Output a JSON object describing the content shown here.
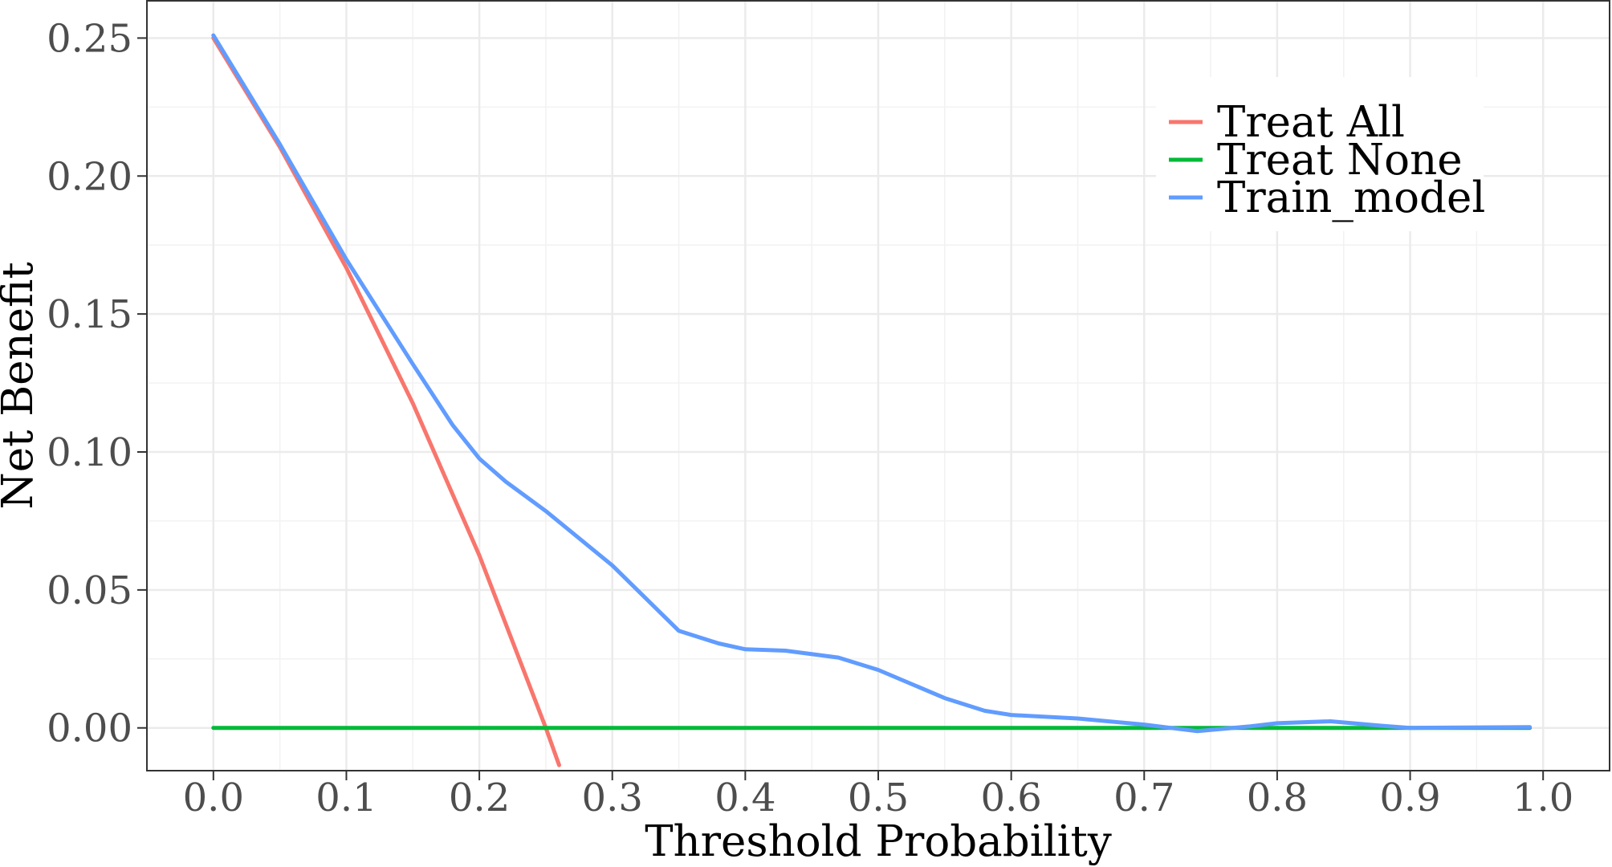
{
  "chart_data": {
    "type": "line",
    "title": "",
    "xlabel": "Threshold Probability",
    "ylabel": "Net Benefit",
    "xlim": [
      -0.05,
      1.05
    ],
    "ylim": [
      -0.0155,
      0.2635
    ],
    "x_ticks": [
      0.0,
      0.1,
      0.2,
      0.3,
      0.4,
      0.5,
      0.6,
      0.7,
      0.8,
      0.9,
      1.0
    ],
    "x_tick_labels": [
      "0.0",
      "0.1",
      "0.2",
      "0.3",
      "0.4",
      "0.5",
      "0.6",
      "0.7",
      "0.8",
      "0.9",
      "1.0"
    ],
    "y_ticks": [
      0.0,
      0.05,
      0.1,
      0.15,
      0.2,
      0.25
    ],
    "y_tick_labels": [
      "0.00",
      "0.05",
      "0.10",
      "0.15",
      "0.20",
      "0.25"
    ],
    "grid": true,
    "legend_position": "top-right",
    "series": [
      {
        "name": "Treat All",
        "color": "#F8766D",
        "x": [
          0.0,
          0.05,
          0.1,
          0.15,
          0.2,
          0.25,
          0.26
        ],
        "y": [
          0.25,
          0.2105,
          0.1667,
          0.1176,
          0.0625,
          0.0,
          -0.0135
        ]
      },
      {
        "name": "Treat None",
        "color": "#00BA38",
        "x": [
          0.0,
          0.99
        ],
        "y": [
          0.0,
          0.0
        ]
      },
      {
        "name": "Train_model",
        "color": "#619CFF",
        "x": [
          0.0,
          0.05,
          0.1,
          0.15,
          0.18,
          0.2,
          0.22,
          0.25,
          0.3,
          0.35,
          0.38,
          0.4,
          0.43,
          0.47,
          0.5,
          0.55,
          0.58,
          0.6,
          0.65,
          0.7,
          0.74,
          0.78,
          0.8,
          0.84,
          0.88,
          0.9,
          0.99
        ],
        "y": [
          0.251,
          0.2115,
          0.1697,
          0.1318,
          0.1097,
          0.0976,
          0.0892,
          0.0786,
          0.0589,
          0.0352,
          0.0306,
          0.0285,
          0.028,
          0.0255,
          0.021,
          0.0108,
          0.0062,
          0.0047,
          0.0034,
          0.0012,
          -0.0012,
          0.0006,
          0.0017,
          0.0024,
          0.0007,
          0.0,
          0.0003
        ]
      }
    ]
  }
}
